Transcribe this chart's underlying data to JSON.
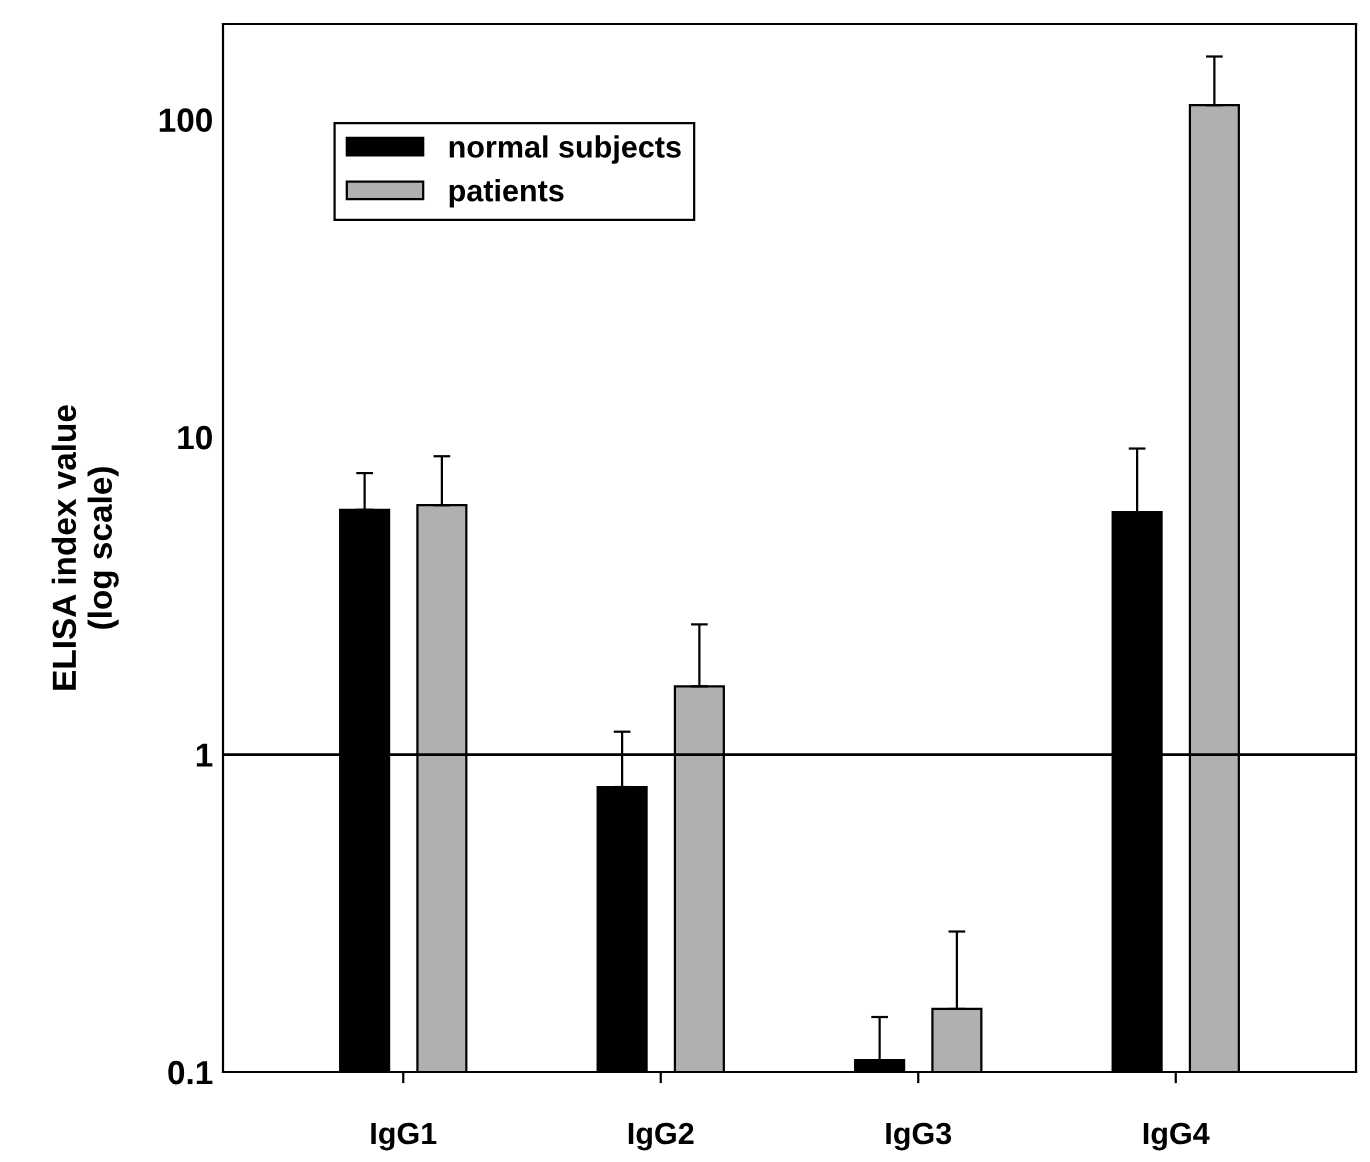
{
  "chart_data": {
    "type": "bar",
    "ylabel": "ELISA index value\n(log scale)",
    "categories": [
      "IgG1",
      "IgG2",
      "IgG3",
      "IgG4"
    ],
    "series": [
      {
        "name": "normal subjects",
        "color": "#000000",
        "values": [
          5.9,
          0.79,
          0.109,
          5.8
        ],
        "errors": [
          [
            5.9,
            7.7
          ],
          [
            0.79,
            1.18
          ],
          [
            0.109,
            0.149
          ],
          [
            5.8,
            9.2
          ]
        ]
      },
      {
        "name": "patients",
        "color": "#b0b0b0",
        "values": [
          6.1,
          1.64,
          0.158,
          111
        ],
        "errors": [
          [
            6.1,
            8.7
          ],
          [
            1.64,
            2.57
          ],
          [
            0.158,
            0.277
          ],
          [
            111,
            158
          ]
        ]
      }
    ],
    "log": true,
    "ylim": [
      0.1,
      200
    ],
    "yticks": [
      0.1,
      1,
      10,
      100
    ],
    "ref_lines": [
      {
        "axis": "y",
        "value": 1,
        "color": "#000000"
      }
    ],
    "grid": false,
    "legend": "top left"
  }
}
